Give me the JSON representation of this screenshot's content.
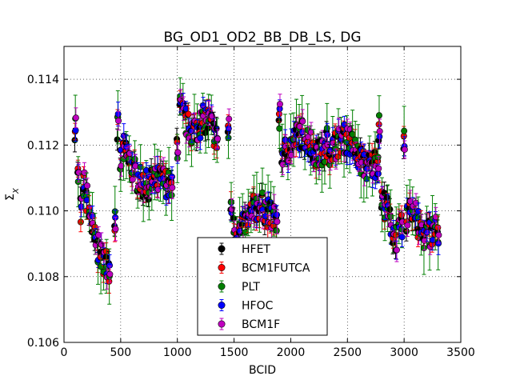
{
  "chart_data": {
    "type": "scatter",
    "title": "BG_OD1_OD2_BB_DB_LS, DG",
    "xlabel": "BCID",
    "ylabel": "Σ_X",
    "xlim": [
      0,
      3500
    ],
    "ylim": [
      0.106,
      0.115
    ],
    "x_ticks": [
      "0",
      "500",
      "1000",
      "1500",
      "2000",
      "2500",
      "3000",
      "3500"
    ],
    "y_ticks": [
      "0.106",
      "0.108",
      "0.110",
      "0.112",
      "0.114"
    ],
    "grid": true,
    "legend_position": "lower-center",
    "series": [
      {
        "name": "HFET",
        "color": "#000000"
      },
      {
        "name": "BCM1FUTCA",
        "color": "#ff0000"
      },
      {
        "name": "PLT",
        "color": "#007f00"
      },
      {
        "name": "HFOC",
        "color": "#0000ff"
      },
      {
        "name": "BCM1F",
        "color": "#bf00bf"
      }
    ],
    "bcid_groups": [
      {
        "x_start": 100,
        "x_end": 420,
        "y_start": 0.1113,
        "y_end": 0.1078,
        "head": [
          0.1126,
          0.111,
          0.11
        ],
        "spread": 0.00045
      },
      {
        "x_start": 450,
        "x_end": 960,
        "y_start": 0.1118,
        "y_end": 0.1104,
        "head": [
          0.1098,
          0.1125,
          0.1115
        ],
        "spread": 0.00045
      },
      {
        "x_start": 1000,
        "x_end": 1350,
        "y_start": 0.113,
        "y_end": 0.1123,
        "head": [
          0.112
        ],
        "spread": 0.00045
      },
      {
        "x_start": 1450,
        "x_end": 1880,
        "y_start": 0.1096,
        "y_end": 0.11,
        "head": [
          0.1124,
          0.1102
        ],
        "spread": 0.00045
      },
      {
        "x_start": 1900,
        "x_end": 2300,
        "y_start": 0.1121,
        "y_end": 0.112,
        "head": [
          0.1128
        ],
        "spread": 0.00045
      },
      {
        "x_start": 2320,
        "x_end": 2780,
        "y_start": 0.1121,
        "y_end": 0.1115,
        "head": [
          0.1121
        ],
        "spread": 0.00045
      },
      {
        "x_start": 2780,
        "x_end": 3000,
        "y_start": 0.1101,
        "y_end": 0.1092,
        "head": [
          0.1125,
          0.1103
        ],
        "spread": 0.00045
      },
      {
        "x_start": 3000,
        "x_end": 3320,
        "y_start": 0.1102,
        "y_end": 0.109,
        "head": [
          0.112,
          0.1098
        ],
        "spread": 0.00045
      }
    ]
  }
}
